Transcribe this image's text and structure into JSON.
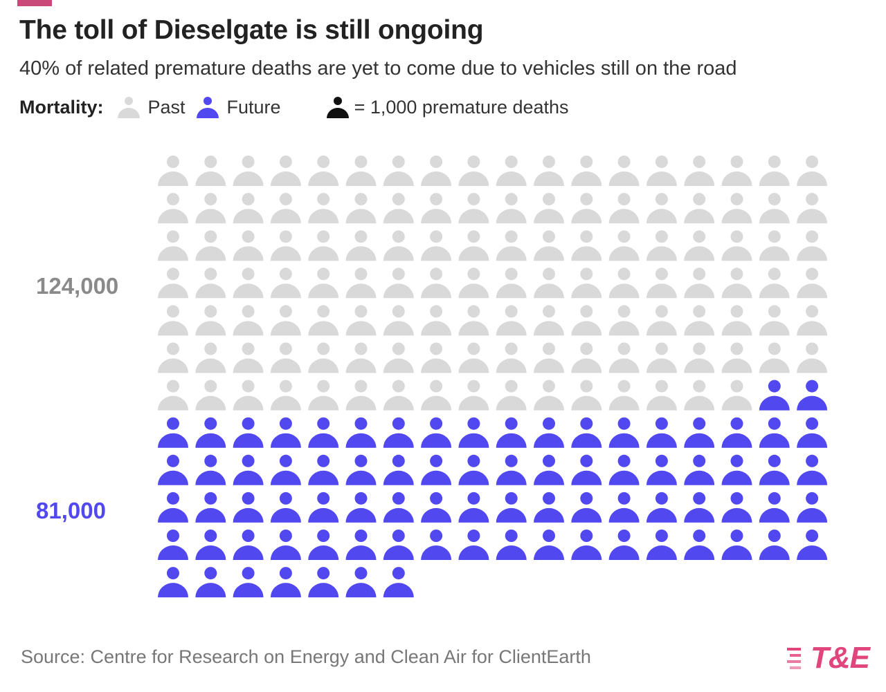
{
  "title": "The toll of Dieselgate is still ongoing",
  "subtitle": "40% of related premature deaths are yet to come due to vehicles still on the road",
  "legend": {
    "label": "Mortality:",
    "past": "Past",
    "future": "Future",
    "unit": "= 1,000 premature deaths"
  },
  "colors": {
    "accent": "#c8497a",
    "past": "#d9d9d9",
    "future": "#5148f0",
    "unit": "#111111",
    "past_label": "#8a8a8a",
    "brand": "#e0457b"
  },
  "chart_data": {
    "type": "pictogram",
    "title": "The toll of Dieselgate is still ongoing",
    "unit_value": 1000,
    "unit_label": "= 1,000 premature deaths",
    "icons_per_row": 18,
    "series": [
      {
        "name": "Past",
        "value": 124000,
        "icons": 124,
        "label": "124,000"
      },
      {
        "name": "Future",
        "value": 81000,
        "icons": 81,
        "label": "81,000"
      }
    ]
  },
  "source": "Source: Centre for Research on Energy and Clean Air for ClientEarth",
  "logo": {
    "text": "T&E"
  }
}
